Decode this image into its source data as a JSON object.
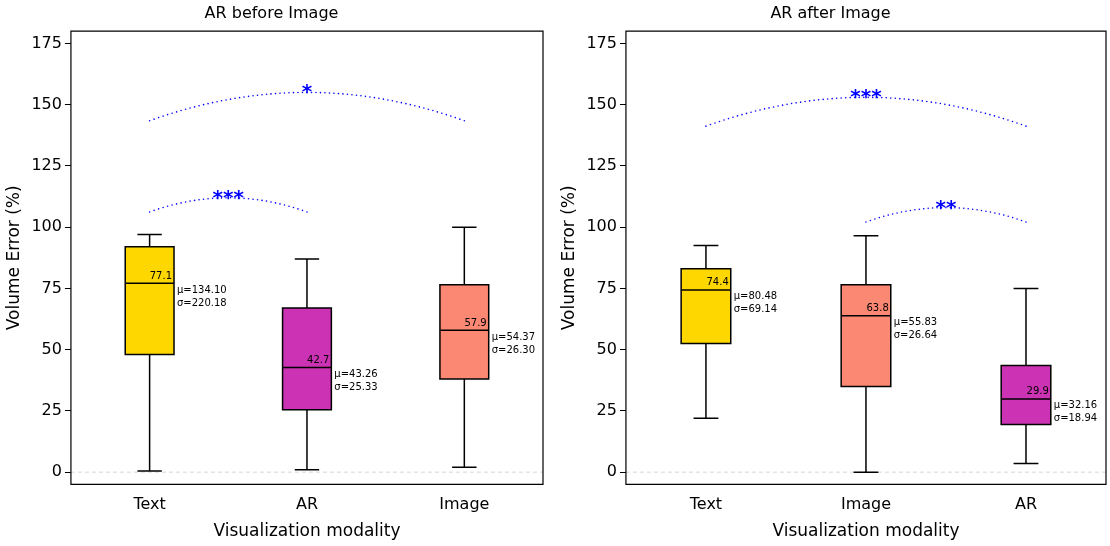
{
  "chart_data": [
    {
      "type": "box",
      "title": "AR before Image",
      "xlabel": "Visualization modality",
      "ylabel": "Volume Error (%)",
      "categories": [
        "Text",
        "AR",
        "Image"
      ],
      "colors": [
        "#ffd700",
        "#cc33b4",
        "#fa8872"
      ],
      "boxes": [
        {
          "low": 0.5,
          "q1": 48,
          "median": 77.1,
          "q3": 92,
          "high": 97
        },
        {
          "low": 1,
          "q1": 25.5,
          "median": 42.7,
          "q3": 67,
          "high": 87
        },
        {
          "low": 2,
          "q1": 38,
          "median": 57.9,
          "q3": 76.5,
          "high": 100
        }
      ],
      "ylim": [
        -5,
        180
      ],
      "yticks": [
        0,
        25,
        50,
        75,
        100,
        125,
        150,
        175
      ],
      "ref_lines": [
        {
          "axis": "y",
          "value": 0,
          "color": "#cccccc",
          "line_style": "dashed"
        }
      ],
      "annotations": [
        "***",
        "*",
        {
          "text": "77.1",
          "x": "Text",
          "y": 77.1
        },
        {
          "text": "42.7",
          "x": "AR",
          "y": 42.7
        },
        {
          "text": "57.9",
          "x": "Image",
          "y": 57.9
        },
        "μ=134.10\nσ=220.18",
        "μ=43.26\nσ=25.33",
        "μ=54.37\nσ=26.30"
      ]
    },
    {
      "type": "box",
      "title": "AR after Image",
      "xlabel": "Visualization modality",
      "ylabel": "Volume Error (%)",
      "categories": [
        "Text",
        "Image",
        "AR"
      ],
      "colors": [
        "#ffd700",
        "#fa8872",
        "#cc33b4"
      ],
      "boxes": [
        {
          "low": 22,
          "q1": 52.5,
          "median": 74.4,
          "q3": 83,
          "high": 92.5
        },
        {
          "low": 0,
          "q1": 35,
          "median": 63.8,
          "q3": 76.5,
          "high": 96.5
        },
        {
          "low": 3.5,
          "q1": 19.5,
          "median": 29.9,
          "q3": 43.5,
          "high": 75
        }
      ],
      "ylim": [
        -5,
        180
      ],
      "yticks": [
        0,
        25,
        50,
        75,
        100,
        125,
        150,
        175
      ],
      "ref_lines": [
        {
          "axis": "y",
          "value": 0,
          "color": "#cccccc",
          "line_style": "dashed"
        }
      ],
      "annotations": [
        "***",
        "**",
        {
          "text": "74.4",
          "x": "Text",
          "y": 74.4
        },
        {
          "text": "63.8",
          "x": "Image",
          "y": 63.8
        },
        {
          "text": "29.9",
          "x": "AR",
          "y": 29.9
        },
        "μ=80.48\nσ=69.14",
        "μ=55.83\nσ=26.64",
        "μ=32.16\nσ=18.94"
      ]
    }
  ]
}
